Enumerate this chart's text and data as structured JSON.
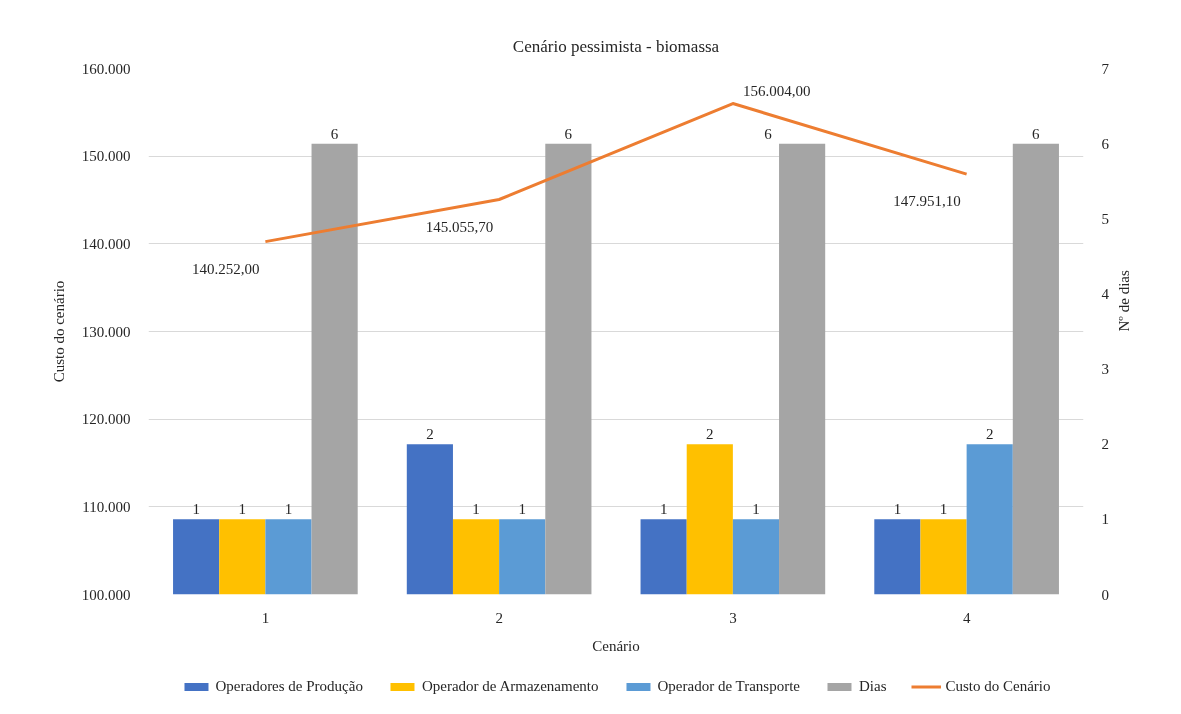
{
  "chart_data": {
    "type": "bar",
    "title": "Cenário pessimista - biomassa",
    "xlabel": "Cenário",
    "ylabel": "Custo do cenário",
    "y2label": "Nº de dias",
    "categories": [
      "1",
      "2",
      "3",
      "4"
    ],
    "series": [
      {
        "name": "Operadores de Produção",
        "color": "#4472c4",
        "axis": "y2",
        "values": [
          1,
          2,
          1,
          1
        ],
        "value_labels": [
          "1",
          "2",
          "1",
          "1"
        ]
      },
      {
        "name": "Operador de Armazenamento",
        "color": "#ffc000",
        "axis": "y2",
        "values": [
          1,
          1,
          2,
          1
        ],
        "value_labels": [
          "1",
          "1",
          "2",
          "1"
        ]
      },
      {
        "name": "Operador de Transporte",
        "color": "#5b9bd5",
        "axis": "y2",
        "values": [
          1,
          1,
          1,
          2
        ],
        "value_labels": [
          "1",
          "1",
          "1",
          "2"
        ]
      },
      {
        "name": "Dias",
        "color": "#a5a5a5",
        "axis": "y2",
        "values": [
          6,
          6,
          6,
          6
        ],
        "value_labels": [
          "6",
          "6",
          "6",
          "6"
        ]
      },
      {
        "name": "Custo do Cenário",
        "type": "line",
        "color": "#ed7d31",
        "values": [
          140252,
          145055.7,
          156004,
          147951.1
        ],
        "value_labels": [
          "140.252,00",
          "145.055,70",
          "156.004,00",
          "147.951,10"
        ]
      }
    ],
    "ylim": [
      100000,
      160000
    ],
    "yticks": [
      {
        "value": 100000,
        "label": "100.000"
      },
      {
        "value": 110000,
        "label": "110.000"
      },
      {
        "value": 120000,
        "label": "120.000"
      },
      {
        "value": 130000,
        "label": "130.000"
      },
      {
        "value": 140000,
        "label": "140.000"
      },
      {
        "value": 150000,
        "label": "150.000"
      },
      {
        "value": 160000,
        "label": "160.000"
      }
    ],
    "y2lim": [
      0,
      7
    ],
    "y2ticks": [
      0,
      1,
      2,
      3,
      4,
      5,
      6,
      7
    ],
    "grid": "y",
    "legend": "bottom"
  }
}
